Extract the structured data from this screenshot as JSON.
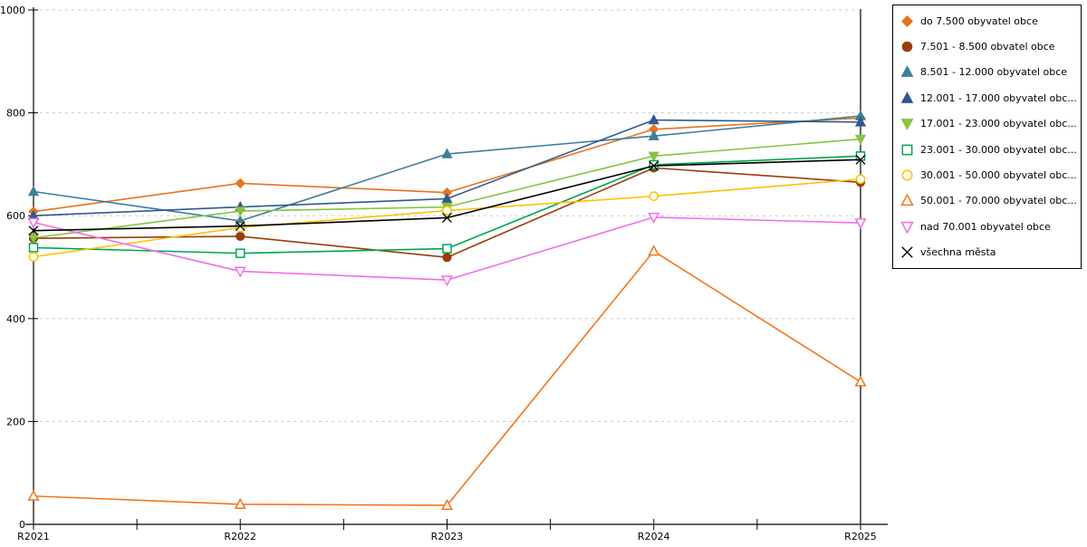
{
  "chart_data": {
    "type": "line",
    "title": "",
    "xlabel": "",
    "ylabel": "",
    "categories": [
      "R2021",
      "R2022",
      "R2023",
      "R2024",
      "R2025"
    ],
    "ylim": [
      0,
      1000
    ],
    "yticks": [
      0,
      200,
      400,
      600,
      800,
      1000
    ],
    "grid": "horizontal-dashed",
    "legend_position": "right-outside",
    "series": [
      {
        "label": "do 7.500 obyvatel obce",
        "color": "#E8731E",
        "marker": "diamond",
        "fill": "solid",
        "values": [
          608,
          663,
          645,
          768,
          790
        ]
      },
      {
        "label": "7.501 - 8.500 obvatel obce",
        "color": "#993D0A",
        "marker": "circle",
        "fill": "solid",
        "values": [
          556,
          560,
          519,
          693,
          665
        ]
      },
      {
        "label": "8.501 - 12.000 obyvatel obce",
        "color": "#3D7E9C",
        "marker": "triangle-up",
        "fill": "solid",
        "values": [
          647,
          590,
          720,
          755,
          794
        ]
      },
      {
        "label": "12.001 - 17.000 obyvatel obc...",
        "color": "#2E5A8E",
        "marker": "triangle-up",
        "fill": "solid",
        "values": [
          600,
          617,
          633,
          786,
          782
        ]
      },
      {
        "label": "17.001 - 23.000 obyvatel obc...",
        "color": "#86C440",
        "marker": "triangle-down",
        "fill": "solid",
        "values": [
          557,
          609,
          617,
          716,
          749
        ]
      },
      {
        "label": "23.001 - 30.000 obyvatel obc...",
        "color": "#00A550",
        "marker": "square",
        "fill": "open",
        "values": [
          538,
          527,
          536,
          699,
          716
        ]
      },
      {
        "label": "30.001 - 50.000 obyvatel obc...",
        "color": "#FFC000",
        "marker": "circle",
        "fill": "open",
        "values": [
          520,
          577,
          610,
          638,
          671
        ]
      },
      {
        "label": "50.001 - 70.000 obyvatel obc...",
        "color": "#F3761C",
        "marker": "triangle-up",
        "fill": "open",
        "values": [
          55,
          39,
          37,
          531,
          277
        ]
      },
      {
        "label": "nad 70.001 obyvatel obce",
        "color": "#F06EEA",
        "marker": "triangle-down",
        "fill": "open",
        "values": [
          587,
          492,
          475,
          597,
          586
        ]
      },
      {
        "label": "všechna města",
        "color": "#000000",
        "marker": "x",
        "fill": "solid",
        "values": [
          571,
          580,
          596,
          697,
          709
        ]
      }
    ]
  },
  "colors": {
    "gridline": "#c9c9c9",
    "axis": "#000000",
    "background": "#ffffff"
  }
}
